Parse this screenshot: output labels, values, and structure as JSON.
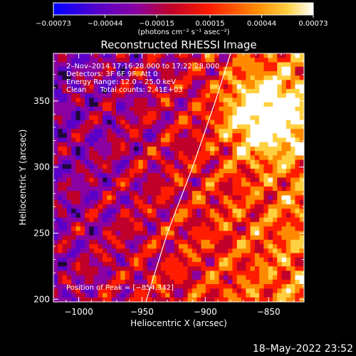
{
  "chart_data": {
    "type": "heatmap",
    "title": "Reconstructed RHESSI Image",
    "xlabel": "Heliocentric X (arcsec)",
    "ylabel": "Heliocentric Y (arcsec)",
    "xlim": [
      -1020,
      -822
    ],
    "ylim": [
      198,
      386
    ],
    "x_ticks": [
      -1000,
      -950,
      -900,
      -850
    ],
    "x_tick_labels": [
      "−1000",
      "−950",
      "−900",
      "−850"
    ],
    "y_ticks": [
      200,
      250,
      300,
      350
    ],
    "y_tick_labels": [
      "200",
      "250",
      "300",
      "350"
    ],
    "colorbar": {
      "min": -0.00073,
      "max": 0.00073,
      "ticks": [
        -0.00073,
        -0.00044,
        -0.00015,
        0.00015,
        0.00044,
        0.00073
      ],
      "tick_labels": [
        "−0.00073",
        "−0.00044",
        "−0.00015",
        "0.00015",
        "0.00044",
        "0.00073"
      ],
      "unit_label": "(photons cm⁻² s⁻¹ asec⁻²)",
      "colors": [
        "#0000ff",
        "#5a00c8",
        "#8a00a0",
        "#c0002a",
        "#ff1c00",
        "#ff8a00",
        "#ffd040",
        "#ffffff"
      ]
    },
    "limb_curve": [
      [
        -947,
        198
      ],
      [
        -930,
        250
      ],
      [
        -910,
        300
      ],
      [
        -892,
        350
      ],
      [
        -880,
        386
      ]
    ],
    "annotations": {
      "time": "2–Nov–2014 17:16:28.000 to 17:22:28.000",
      "detectors": "Detectors: 3F 6F 9F, Att 0",
      "energy": "Energy Range: 12.0 – 25.0 keV",
      "clean": "Clean      Total counts: 2.41E+03",
      "peak": "Position of Peak = [−854,342]"
    },
    "peak": [
      -854,
      342
    ]
  },
  "footer": {
    "timestamp": "18–May–2022 23:52"
  }
}
